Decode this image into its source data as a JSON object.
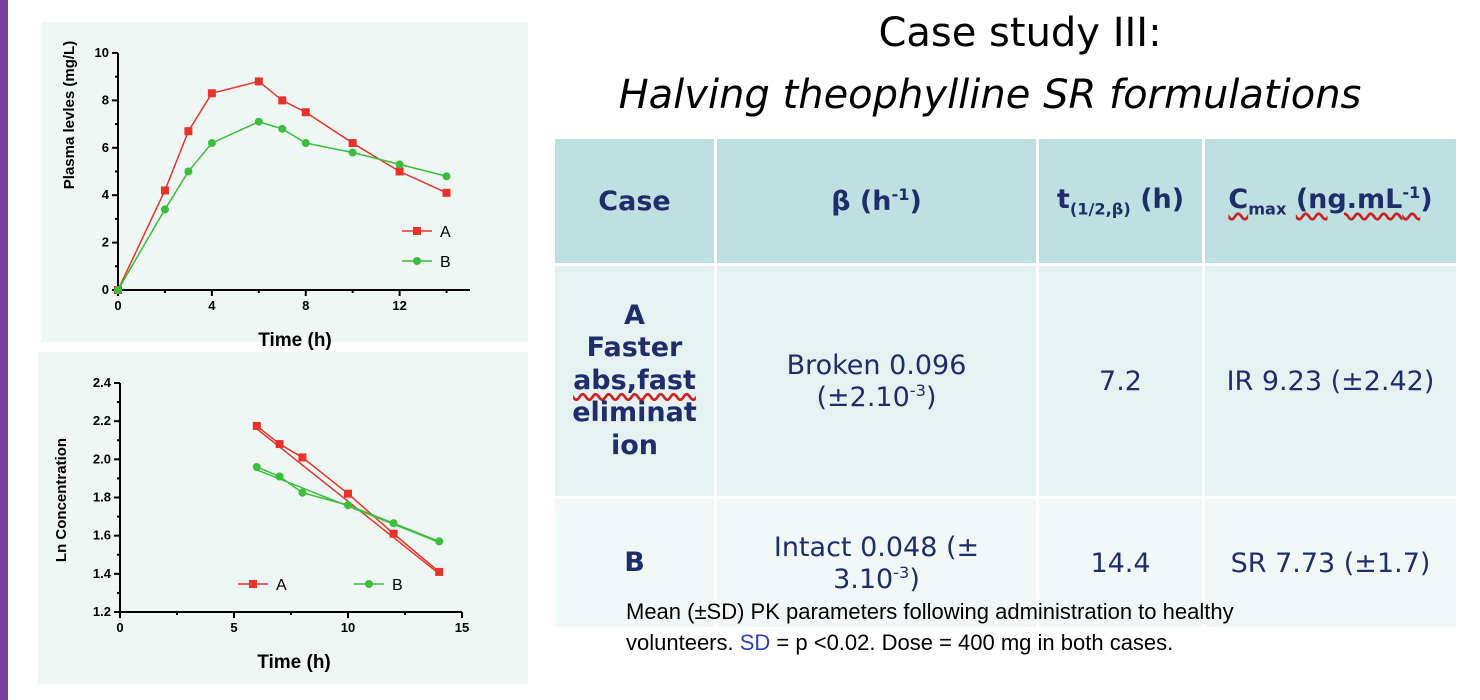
{
  "title_line1": "Case study III:",
  "title_line2": "Halving  theophylline SR formulations",
  "colors": {
    "A": "#e8332b",
    "B": "#3cbd3c",
    "accent": "#7a3fa0"
  },
  "chart_data": [
    {
      "type": "line",
      "title": "",
      "xlabel": "Time (h)",
      "ylabel": "Plasma levles (mg/L)",
      "xlim": [
        0,
        15
      ],
      "ylim": [
        0,
        10
      ],
      "xticks": [
        0,
        4,
        8,
        12
      ],
      "yticks": [
        0,
        2,
        4,
        6,
        8,
        10
      ],
      "legend_position": "bottom-right",
      "series": [
        {
          "name": "A",
          "x": [
            0,
            2,
            3,
            4,
            6,
            7,
            8,
            10,
            12,
            14
          ],
          "y": [
            0,
            4.2,
            6.7,
            8.3,
            8.8,
            8.0,
            7.5,
            6.2,
            5.0,
            4.1
          ]
        },
        {
          "name": "B",
          "x": [
            0,
            2,
            3,
            4,
            6,
            7,
            8,
            10,
            12,
            14
          ],
          "y": [
            0,
            3.4,
            5.0,
            6.2,
            7.1,
            6.8,
            6.2,
            5.8,
            5.3,
            4.8
          ]
        }
      ]
    },
    {
      "type": "line",
      "title": "",
      "xlabel": "Time (h)",
      "ylabel": "Ln Concentration",
      "xlim": [
        0,
        15
      ],
      "ylim": [
        1.2,
        2.4
      ],
      "xticks": [
        0,
        5,
        10,
        15
      ],
      "yticks": [
        1.2,
        1.4,
        1.6,
        1.8,
        2.0,
        2.2,
        2.4
      ],
      "tick_decimals": 1,
      "legend_position": "bottom",
      "series": [
        {
          "name": "A",
          "x": [
            6,
            7,
            8,
            10,
            12,
            14
          ],
          "y": [
            2.175,
            2.08,
            2.01,
            1.82,
            1.61,
            1.41
          ],
          "fit": [
            [
              6,
              2.16
            ],
            [
              14,
              1.4
            ]
          ]
        },
        {
          "name": "B",
          "x": [
            6,
            7,
            8,
            10,
            12,
            14
          ],
          "y": [
            1.96,
            1.91,
            1.825,
            1.76,
            1.665,
            1.57
          ],
          "fit": [
            [
              6,
              1.945
            ],
            [
              14,
              1.565
            ]
          ]
        }
      ]
    }
  ],
  "table": {
    "headers": {
      "case": "Case",
      "beta_prefix": "β  (h",
      "beta_sup": "-1",
      "beta_suffix": ")",
      "thalf_t": "t",
      "thalf_sub": "(1/2,β)",
      "thalf_suffix": " (h)",
      "cmax_c": "C",
      "cmax_sub": "max",
      "cmax_unit": "(ng.mL",
      "cmax_sup": "-1",
      "cmax_close": ")"
    },
    "row_a": {
      "case_lines": [
        "A",
        "Faster",
        "abs,fast",
        "eliminat",
        "ion"
      ],
      "beta_line1": "Broken 0.096",
      "beta_line2_pre": "(±2.10",
      "beta_line2_sup": "-3",
      "beta_line2_post": ")",
      "thalf": "7.2",
      "cmax": "IR 9.23 (±2.42)"
    },
    "row_b": {
      "case": "B",
      "beta_line1": "Intact 0.048 (±",
      "beta_line2_pre": "3.10",
      "beta_line2_sup": "-3",
      "beta_line2_post": ")",
      "thalf": "14.4",
      "cmax": "SR 7.73 (±1.7)"
    }
  },
  "footnote": {
    "line1": "Mean (±SD) PK parameters following administration to healthy",
    "line2_pre": "volunteers. ",
    "line2_sd": "SD",
    "line2_post": " = p <0.02. Dose = 400 mg in both cases."
  }
}
